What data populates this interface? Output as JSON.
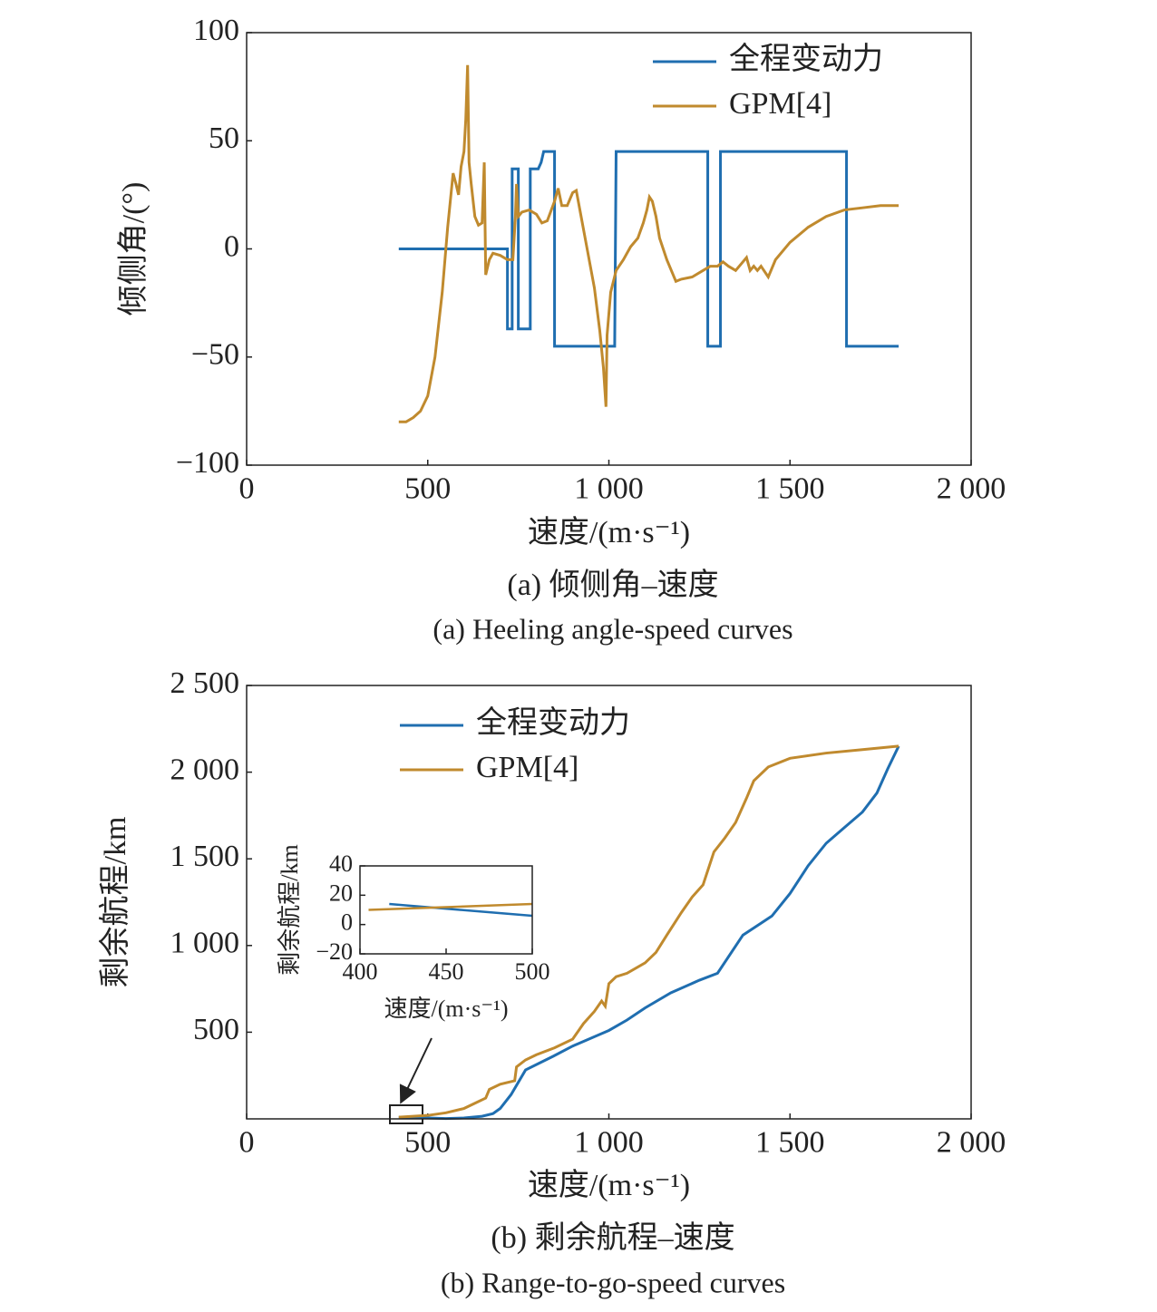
{
  "chart_data": [
    {
      "type": "line",
      "caption": "(a) 倾侧角–速度",
      "caption_en": "(a) Heeling angle-speed curves",
      "xlabel": "速度/(m·s⁻¹)",
      "ylabel": "倾侧角/(°)",
      "xlim": [
        0,
        2000
      ],
      "xticks": [
        0,
        500,
        {
          "value": 1000,
          "label": "1 000"
        },
        {
          "value": 1500,
          "label": "1 500"
        },
        {
          "value": 2000,
          "label": "2 000"
        }
      ],
      "ylim": [
        -100,
        100
      ],
      "yticks": [
        {
          "value": -100,
          "label": "−100"
        },
        {
          "value": -50,
          "label": "−50"
        },
        0,
        50,
        100
      ],
      "series": [
        {
          "name": "全程变动力",
          "color": "#1f6eb0",
          "x": [
            420,
            720,
            720,
            733,
            733,
            750,
            750,
            783,
            783,
            805,
            813,
            820,
            850,
            850,
            1016,
            1020,
            1273,
            1273,
            1308,
            1308,
            1656,
            1656,
            1800
          ],
          "values": [
            0,
            0,
            -37,
            -37,
            37,
            37,
            -37,
            -37,
            37,
            37,
            40,
            45,
            45,
            -45,
            -45,
            45,
            45,
            -45,
            -45,
            45,
            45,
            -45,
            -45
          ]
        },
        {
          "name": "GPM[4]",
          "color": "#c08a2e",
          "x": [
            420,
            440,
            460,
            480,
            500,
            520,
            540,
            555,
            570,
            578,
            585,
            592,
            600,
            605,
            610,
            614,
            620,
            630,
            640,
            650,
            656,
            660,
            670,
            680,
            700,
            720,
            735,
            742,
            745,
            750,
            760,
            780,
            800,
            815,
            830,
            850,
            860,
            870,
            885,
            900,
            910,
            920,
            940,
            960,
            975,
            985,
            992,
            995,
            1005,
            1020,
            1040,
            1060,
            1080,
            1095,
            1105,
            1112,
            1120,
            1130,
            1140,
            1160,
            1185,
            1200,
            1230,
            1260,
            1280,
            1300,
            1315,
            1330,
            1350,
            1370,
            1380,
            1390,
            1400,
            1410,
            1420,
            1440,
            1460,
            1500,
            1550,
            1600,
            1650,
            1700,
            1750,
            1800
          ],
          "values": [
            -80,
            -80,
            -78,
            -75,
            -68,
            -50,
            -20,
            10,
            35,
            30,
            25,
            38,
            45,
            60,
            85,
            40,
            30,
            15,
            11,
            12,
            40,
            -12,
            -5,
            -2,
            -3,
            -5,
            -5,
            15,
            30,
            15,
            17,
            18,
            16,
            12,
            13,
            22,
            28,
            20,
            20,
            26,
            27,
            18,
            0,
            -18,
            -38,
            -55,
            -73,
            -40,
            -20,
            -10,
            -5,
            1,
            5,
            12,
            18,
            24,
            22,
            15,
            5,
            -5,
            -15,
            -14,
            -13,
            -10,
            -8,
            -8,
            -6,
            -8,
            -10,
            -6,
            -4,
            -10,
            -8,
            -10,
            -8,
            -13,
            -5,
            3,
            10,
            15,
            18,
            19,
            20,
            20
          ]
        }
      ]
    },
    {
      "type": "line",
      "caption": "(b) 剩余航程–速度",
      "caption_en": "(b) Range-to-go-speed curves",
      "xlabel": "速度/(m·s⁻¹)",
      "ylabel": "剩余航程/km",
      "xlim": [
        0,
        2000
      ],
      "xticks": [
        0,
        500,
        {
          "value": 1000,
          "label": "1 000"
        },
        {
          "value": 1500,
          "label": "1 500"
        },
        {
          "value": 2000,
          "label": "2 000"
        }
      ],
      "ylim": [
        0,
        2500
      ],
      "yticks": [
        500,
        {
          "value": 1000,
          "label": "1 000"
        },
        {
          "value": 1500,
          "label": "1 500"
        },
        {
          "value": 2000,
          "label": "2 000"
        },
        {
          "value": 2500,
          "label": "2 500"
        }
      ],
      "series": [
        {
          "name": "全程变动力",
          "color": "#1f6eb0",
          "x": [
            420,
            500,
            550,
            600,
            650,
            680,
            700,
            730,
            770,
            846,
            900,
            950,
            1000,
            1050,
            1100,
            1171,
            1250,
            1300,
            1370,
            1450,
            1500,
            1550,
            1600,
            1650,
            1700,
            1740,
            1770,
            1800
          ],
          "values": [
            10,
            5,
            2,
            5,
            15,
            30,
            60,
            140,
            282,
            361,
            420,
            465,
            510,
            570,
            640,
            727,
            800,
            840,
            1060,
            1170,
            1300,
            1460,
            1590,
            1680,
            1770,
            1880,
            2020,
            2150
          ]
        },
        {
          "name": "GPM[4]",
          "color": "#c08a2e",
          "x": [
            420,
            500,
            550,
            600,
            640,
            660,
            670,
            700,
            740,
            745,
            770,
            800,
            850,
            900,
            930,
            960,
            980,
            990,
            1000,
            1020,
            1050,
            1100,
            1130,
            1160,
            1200,
            1230,
            1260,
            1290,
            1320,
            1350,
            1380,
            1400,
            1440,
            1500,
            1600,
            1700,
            1800
          ],
          "values": [
            10,
            20,
            35,
            60,
            100,
            120,
            170,
            200,
            220,
            300,
            340,
            370,
            410,
            460,
            550,
            620,
            680,
            650,
            780,
            820,
            840,
            900,
            960,
            1060,
            1190,
            1280,
            1350,
            1540,
            1620,
            1710,
            1850,
            1950,
            2030,
            2080,
            2110,
            2130,
            2150
          ]
        }
      ]
    },
    {
      "type": "line",
      "xlabel": "速度/(m·s⁻¹)",
      "ylabel": "剩余航程/km",
      "xlim": [
        400,
        500
      ],
      "xticks": [
        400,
        450,
        500
      ],
      "ylim": [
        -20,
        40
      ],
      "yticks": [
        {
          "value": -20,
          "label": "−20"
        },
        0,
        20,
        40
      ],
      "series": [
        {
          "color": "#1f6eb0",
          "x": [
            417,
            500
          ],
          "values": [
            14,
            6
          ]
        },
        {
          "color": "#c08a2e",
          "x": [
            405,
            500
          ],
          "values": [
            10,
            14
          ]
        }
      ]
    }
  ]
}
